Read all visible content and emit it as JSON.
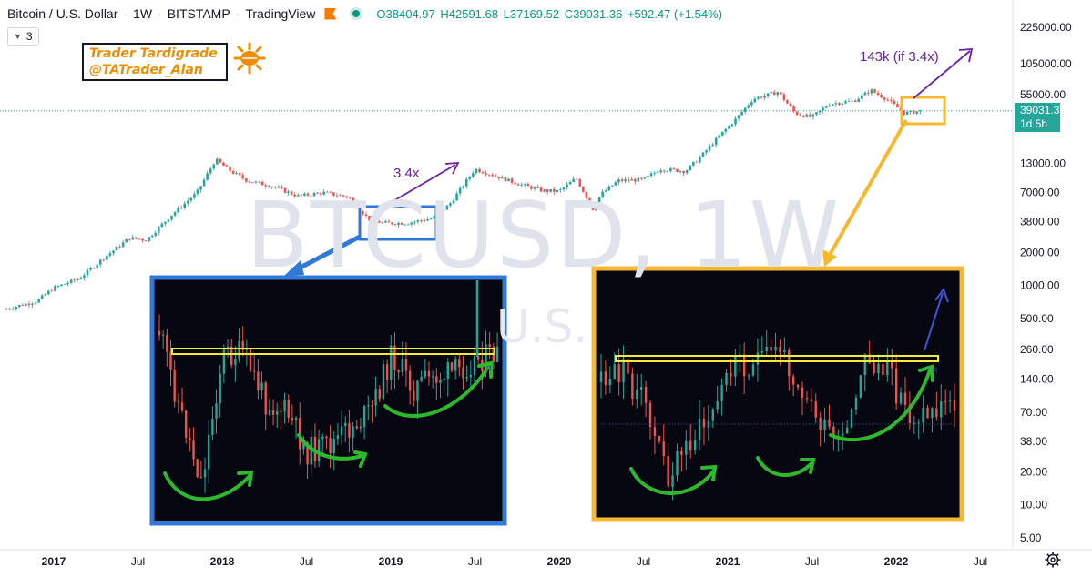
{
  "header": {
    "symbol": "Bitcoin / U.S. Dollar",
    "interval": "1W",
    "exchange": "BITSTAMP",
    "platform": "TradingView",
    "ohlc": {
      "open": "O38404.97",
      "high": "H42591.68",
      "low": "L37169.52",
      "close": "C39031.36",
      "change": "+592.47 (+1.54%)"
    },
    "indicator_count": "3"
  },
  "brand": {
    "line1": "Trader Tardigrade",
    "line2": "@TATrader_Alan"
  },
  "watermark": {
    "main": "BTCUSD, 1W",
    "sub": "U.S."
  },
  "price_tag": {
    "price": "39031.36",
    "countdown": "1d 5h"
  },
  "annotations": {
    "past_target": "3.4x",
    "future_target": "143k (if 3.4x)"
  },
  "colors": {
    "up": "#26a69a",
    "down": "#ef5350",
    "blue_box": "#3179d6",
    "orange_box": "#f5b82e",
    "arrow_purple": "#6a1fa6",
    "curve_green": "#2eb82e",
    "resistance_yellow": "#f5e93a"
  },
  "chart_data": {
    "type": "line",
    "title": "Bitcoin / U.S. Dollar",
    "scale": "log",
    "y_axis_ticks": [
      "225000.00",
      "105000.00",
      "55000.00",
      "13000.00",
      "7000.00",
      "3800.00",
      "2000.00",
      "1000.00",
      "500.00",
      "260.00",
      "140.00",
      "70.00",
      "38.00",
      "20.00",
      "10.00",
      "5.00"
    ],
    "y_axis_tick_values": [
      225000,
      105000,
      55000,
      13000,
      7000,
      3800,
      2000,
      1000,
      500,
      260,
      140,
      70,
      38,
      20,
      10,
      5
    ],
    "x_axis_ticks": [
      "2017",
      "Jul",
      "2018",
      "Jul",
      "2019",
      "Jul",
      "2020",
      "Jul",
      "2021",
      "Jul",
      "2022",
      "Jul"
    ],
    "x_axis_tick_years": [
      2017.0,
      2017.5,
      2018.0,
      2018.5,
      2019.0,
      2019.5,
      2020.0,
      2020.5,
      2021.0,
      2021.5,
      2022.0,
      2022.5
    ],
    "series": [
      {
        "name": "BTCUSD weekly close (approx.)",
        "x": [
          2016.7,
          2016.9,
          2017.0,
          2017.15,
          2017.3,
          2017.45,
          2017.55,
          2017.7,
          2017.85,
          2017.96,
          2018.05,
          2018.15,
          2018.3,
          2018.45,
          2018.6,
          2018.75,
          2018.87,
          2018.95,
          2019.1,
          2019.25,
          2019.35,
          2019.45,
          2019.5,
          2019.6,
          2019.75,
          2019.9,
          2020.0,
          2020.1,
          2020.2,
          2020.25,
          2020.35,
          2020.5,
          2020.6,
          2020.75,
          2020.85,
          2020.95,
          2021.05,
          2021.15,
          2021.3,
          2021.4,
          2021.5,
          2021.6,
          2021.75,
          2021.85,
          2021.95,
          2022.05,
          2022.15
        ],
        "y": [
          600,
          720,
          950,
          1150,
          1800,
          2700,
          2600,
          4400,
          7000,
          14000,
          11000,
          9000,
          8000,
          6500,
          7000,
          6400,
          4000,
          3700,
          3700,
          4100,
          5500,
          9000,
          11500,
          10200,
          8500,
          7300,
          7200,
          9500,
          5000,
          6800,
          9000,
          9200,
          11500,
          11000,
          15500,
          23000,
          33000,
          50000,
          58000,
          37000,
          34000,
          45000,
          48000,
          60000,
          49000,
          37000,
          39031.36
        ]
      }
    ],
    "ylim": [
      5,
      225000
    ],
    "xlim": [
      2016.7,
      2022.7
    ],
    "current_price": 39031.36,
    "insets": [
      {
        "name": "2018-2019 bottom consolidation (blue box)",
        "detail_of": [
          2018.85,
          2019.3
        ]
      },
      {
        "name": "2022 consolidation (orange box)",
        "detail_of": [
          2021.95,
          2022.2
        ]
      }
    ],
    "legend": "none",
    "grid": false
  }
}
